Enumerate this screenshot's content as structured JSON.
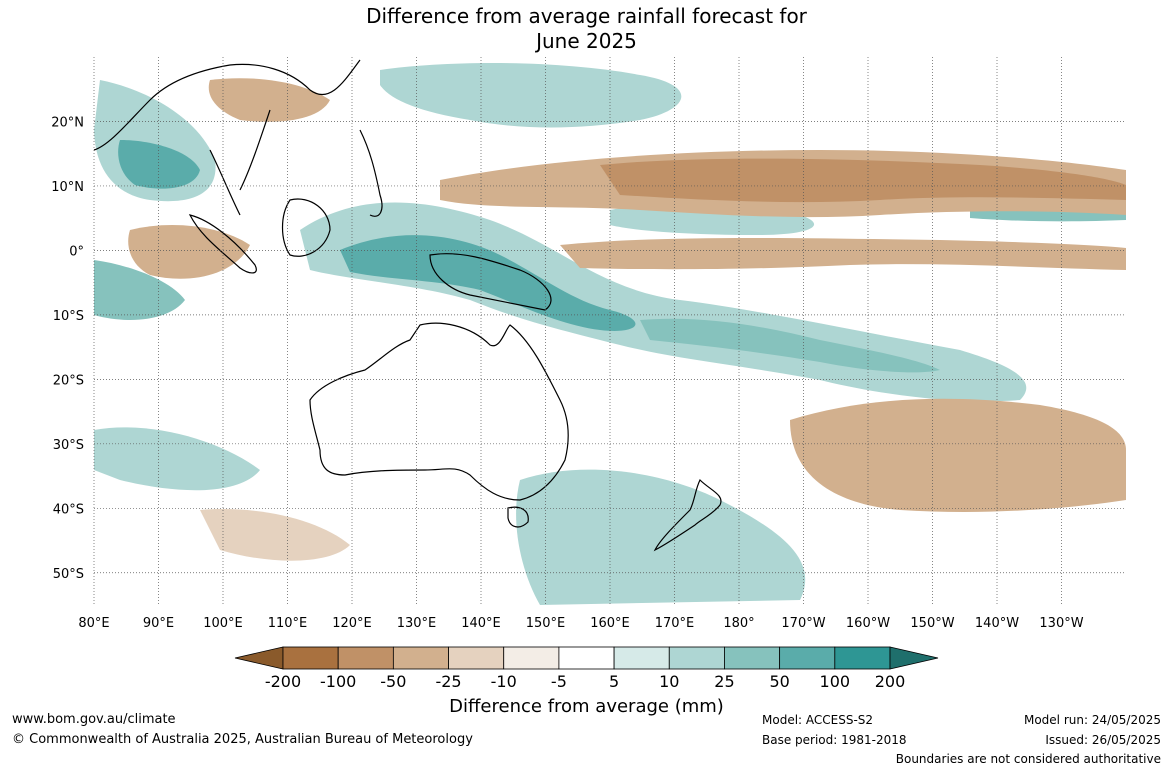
{
  "title": {
    "line1": "Difference from average rainfall forecast for",
    "line2": "June 2025"
  },
  "map": {
    "lat_labels": [
      "20°N",
      "10°N",
      "0°",
      "10°S",
      "20°S",
      "30°S",
      "40°S",
      "50°S"
    ],
    "lat_values": [
      20,
      10,
      0,
      -10,
      -20,
      -30,
      -40,
      -50
    ],
    "lon_labels": [
      "80°E",
      "90°E",
      "100°E",
      "110°E",
      "120°E",
      "130°E",
      "140°E",
      "150°E",
      "160°E",
      "170°E",
      "180°",
      "170°W",
      "160°W",
      "150°W",
      "140°W",
      "130°W"
    ],
    "lon_values": [
      80,
      90,
      100,
      110,
      120,
      130,
      140,
      150,
      160,
      170,
      180,
      190,
      200,
      210,
      220,
      230
    ],
    "extent": {
      "lon_min": 80,
      "lon_max": 240,
      "lat_min": -55,
      "lat_max": 30
    }
  },
  "colorbar": {
    "tick_labels": [
      "-200",
      "-100",
      "-50",
      "-25",
      "-10",
      "-5",
      "5",
      "10",
      "25",
      "50",
      "100",
      "200"
    ],
    "colors": [
      "#8a5a2b",
      "#a9713f",
      "#c09167",
      "#d2b08e",
      "#e5d2bf",
      "#f3ede6",
      "#ffffff",
      "#d6eae8",
      "#aed6d3",
      "#86c2bd",
      "#5aacaa",
      "#2e9694",
      "#1f6f6c"
    ],
    "label": "Difference from average (mm)"
  },
  "footer": {
    "url": "www.bom.gov.au/climate",
    "copyright": "© Commonwealth of Australia 2025, Australian Bureau of Meteorology",
    "model": "Model: ACCESS-S2",
    "base_period": "Base period: 1981-2018",
    "model_run": "Model run: 24/05/2025",
    "issued": "Issued: 26/05/2025",
    "disclaimer": "Boundaries are not considered authoritative"
  }
}
